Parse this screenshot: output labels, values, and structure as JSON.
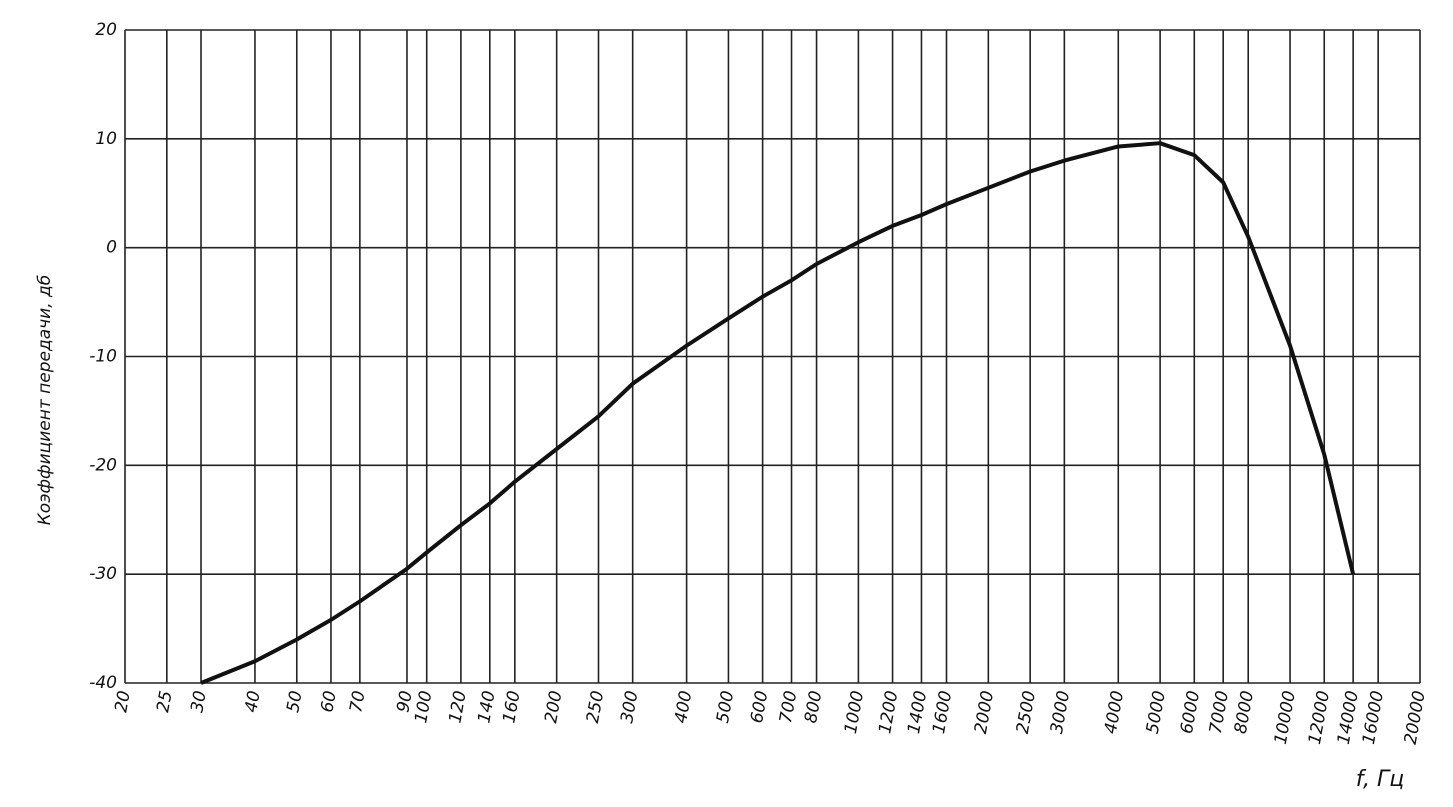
{
  "chart_data": {
    "type": "line",
    "y_label": "Коэффициент передачи, дб",
    "x_label": "f, Гц",
    "xscale": "log",
    "xlim": [
      20,
      20000
    ],
    "xticks": [
      20,
      25,
      30,
      40,
      50,
      60,
      70,
      90,
      100,
      120,
      140,
      160,
      200,
      250,
      300,
      400,
      500,
      600,
      700,
      800,
      1000,
      1200,
      1400,
      1600,
      2000,
      2500,
      3000,
      4000,
      5000,
      6000,
      7000,
      8000,
      10000,
      12000,
      14000,
      16000,
      20000
    ],
    "ylim": [
      -40,
      20
    ],
    "yticks": [
      -40,
      -30,
      -20,
      -10,
      0,
      10,
      20
    ],
    "grid": true,
    "color": "#111111",
    "x": [
      30,
      40,
      50,
      60,
      70,
      90,
      100,
      120,
      140,
      160,
      200,
      250,
      300,
      400,
      500,
      600,
      700,
      800,
      1000,
      1200,
      1400,
      1600,
      2000,
      2500,
      3000,
      4000,
      5000,
      6000,
      7000,
      8000,
      10000,
      12000,
      14000
    ],
    "values": [
      -40,
      -38,
      -36,
      -34.2,
      -32.5,
      -29.5,
      -28,
      -25.5,
      -23.5,
      -21.5,
      -18.5,
      -15.5,
      -12.5,
      -9,
      -6.5,
      -4.5,
      -3,
      -1.5,
      0.5,
      2,
      3,
      4,
      5.5,
      7,
      8,
      9.3,
      9.6,
      8.5,
      6,
      1,
      -9,
      -19,
      -30
    ]
  }
}
